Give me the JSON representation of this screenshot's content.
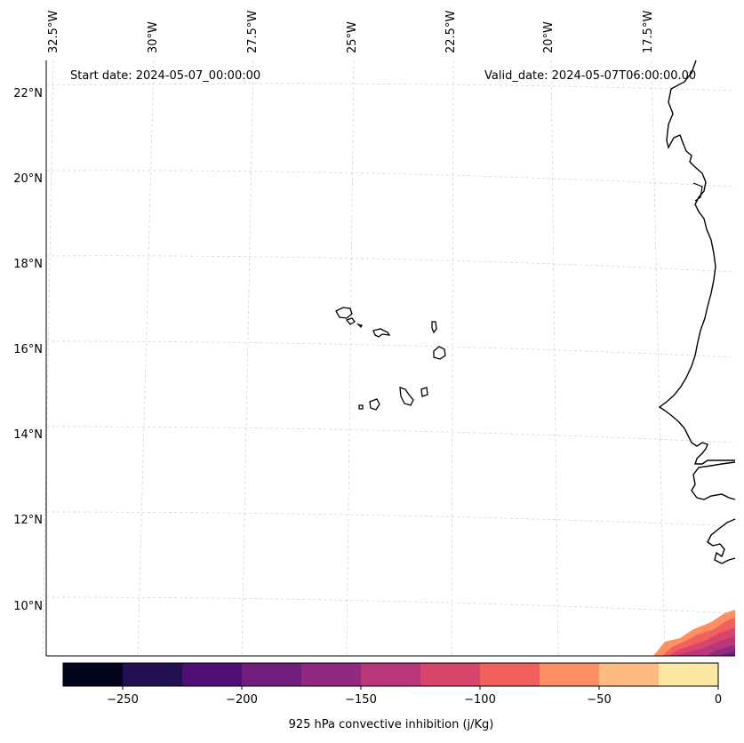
{
  "header": {
    "start_date": "Start date: 2024-05-07_00:00:00",
    "valid_date": "Valid_date: 2024-05-07T06:00:00.00"
  },
  "map": {
    "lon_labels": [
      "32.5°W",
      "30°W",
      "27.5°W",
      "25°W",
      "22.5°W",
      "20°W",
      "17.5°W"
    ],
    "lat_labels": [
      "22°N",
      "20°N",
      "18°N",
      "16°N",
      "14°N",
      "12°N",
      "10°N"
    ],
    "coastline_color": "#000000",
    "gridline_color": "#cccccc"
  },
  "colorbar": {
    "label": "925 hPa convective inhibition (j/Kg)",
    "tick_labels": [
      "−250",
      "−200",
      "−150",
      "−100",
      "−50",
      "0"
    ],
    "colors": [
      "#03051a",
      "#221150",
      "#4e0f73",
      "#701f7d",
      "#902a81",
      "#b73779",
      "#d8456c",
      "#f1605d",
      "#fe8f64",
      "#febb81",
      "#fce8a2"
    ]
  }
}
